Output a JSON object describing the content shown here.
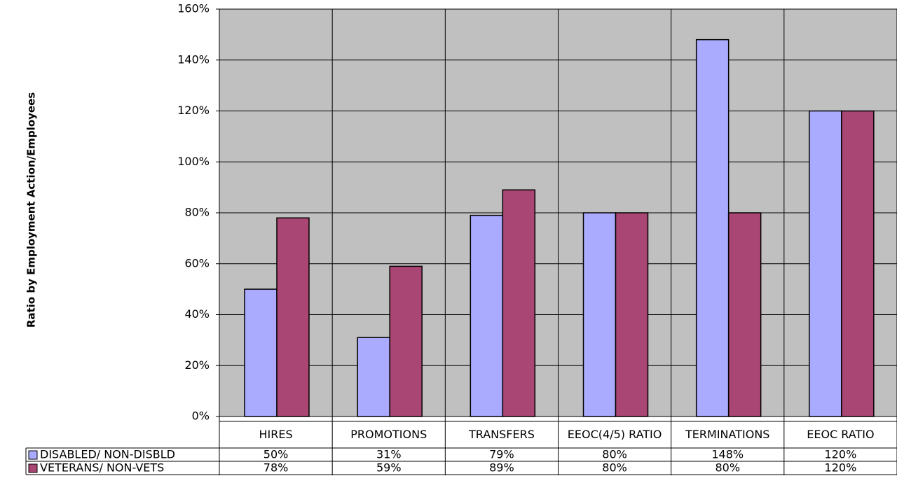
{
  "chart_data": {
    "type": "bar",
    "y_label": "Ratio by Employment Action/Employees",
    "categories": [
      "HIRES",
      "PROMOTIONS",
      "TRANSFERS",
      "EEOC(4/5) RATIO",
      "TERMINATIONS",
      "EEOC RATIO"
    ],
    "series": [
      {
        "name": "DISABLED/ NON-DISBLD",
        "color": "#aaaaff",
        "values": [
          50,
          31,
          79,
          80,
          148,
          120
        ],
        "value_labels": [
          "50%",
          "31%",
          "79%",
          "80%",
          "148%",
          "120%"
        ]
      },
      {
        "name": "VETERANS/ NON-VETS",
        "color": "#a94673",
        "values": [
          78,
          59,
          89,
          80,
          80,
          120
        ],
        "value_labels": [
          "78%",
          "59%",
          "89%",
          "80%",
          "80%",
          "120%"
        ]
      }
    ],
    "ylim": [
      0,
      160
    ],
    "yticks": [
      {
        "value": 0,
        "label": "0%"
      },
      {
        "value": 20,
        "label": "20%"
      },
      {
        "value": 40,
        "label": "40%"
      },
      {
        "value": 60,
        "label": "60%"
      },
      {
        "value": 80,
        "label": "80%"
      },
      {
        "value": 100,
        "label": "100%"
      },
      {
        "value": 120,
        "label": "120%"
      },
      {
        "value": 140,
        "label": "140%"
      },
      {
        "value": 160,
        "label": "160%"
      }
    ],
    "grid": true,
    "background": "#c0c0c0"
  }
}
